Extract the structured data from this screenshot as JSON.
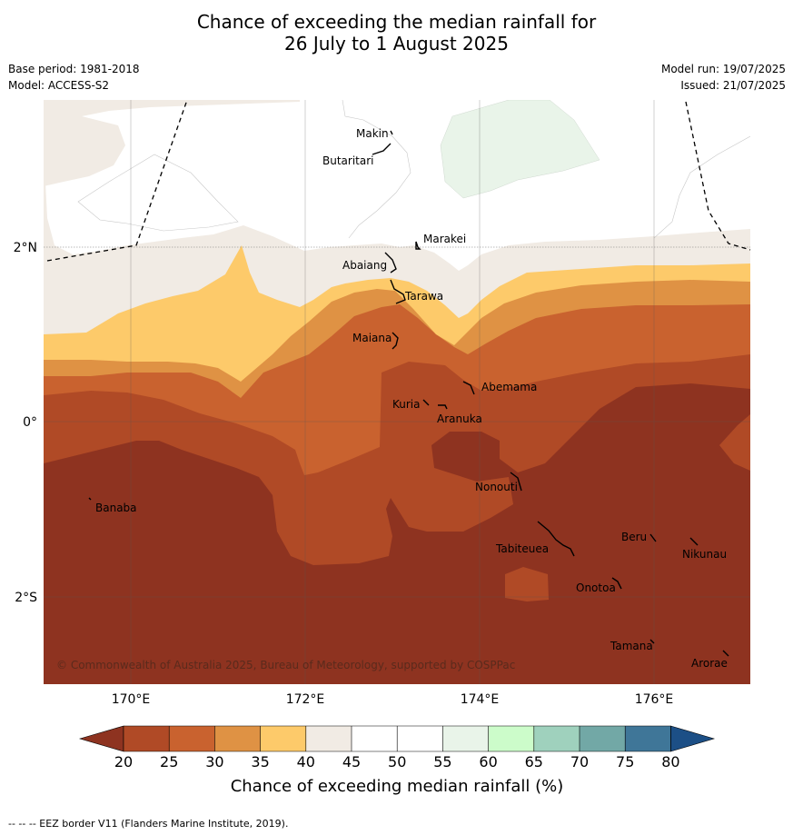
{
  "title_line1": "Chance of exceeding the median rainfall for",
  "title_line2": "26 July to 1 August 2025",
  "base_period": "Base period: 1981-2018",
  "model": "Model: ACCESS-S2",
  "model_run": "Model run: 19/07/2025",
  "issued": "Issued: 21/07/2025",
  "copyright": "© Commonwealth of Australia 2025, Bureau of Meteorology, supported by COSPPac",
  "footer_note": "-- -- -- EEZ border V11 (Flanders Marine Institute, 2019).",
  "axes": {
    "lon_labels": [
      "170°E",
      "172°E",
      "174°E",
      "176°E"
    ],
    "lat_labels": [
      "2°N",
      "0°",
      "2°S"
    ]
  },
  "places": [
    {
      "name": "Makin"
    },
    {
      "name": "Butaritari"
    },
    {
      "name": "Marakei"
    },
    {
      "name": "Abaiang"
    },
    {
      "name": "Tarawa"
    },
    {
      "name": "Maiana"
    },
    {
      "name": "Abemama"
    },
    {
      "name": "Kuria"
    },
    {
      "name": "Aranuka"
    },
    {
      "name": "Banaba"
    },
    {
      "name": "Nonouti"
    },
    {
      "name": "Beru"
    },
    {
      "name": "Nikunau"
    },
    {
      "name": "Tabiteuea"
    },
    {
      "name": "Onotoa"
    },
    {
      "name": "Tamana"
    },
    {
      "name": "Arorae"
    }
  ],
  "colorbar": {
    "label": "Chance of exceeding median rainfall (%)",
    "ticks": [
      "20",
      "25",
      "30",
      "35",
      "40",
      "45",
      "50",
      "55",
      "60",
      "65",
      "70",
      "75",
      "80"
    ],
    "colors": {
      "below20": "#8e3320",
      "c20_25": "#b04a26",
      "c25_30": "#c9622f",
      "c30_35": "#df9244",
      "c35_40": "#fdca6a",
      "c40_45": "#f1ebe4",
      "c45_50": "#ffffff",
      "c50_55": "#ffffff",
      "c55_60": "#e9f4e9",
      "c60_65": "#ccfcca",
      "c65_70": "#9fd1bd",
      "c70_75": "#72a8a6",
      "c75_80": "#3f7698",
      "above80": "#1c4f86"
    }
  }
}
